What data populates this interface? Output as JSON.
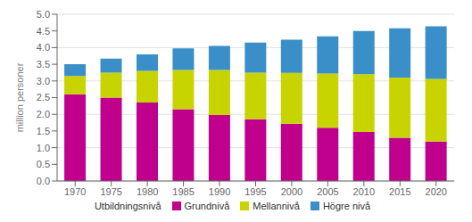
{
  "chart_data": {
    "type": "bar",
    "stacked": true,
    "categories": [
      "1970",
      "1975",
      "1980",
      "1985",
      "1990",
      "1995",
      "2000",
      "2005",
      "2010",
      "2015",
      "2020"
    ],
    "series": [
      {
        "name": "Grundnivå",
        "color": "#c0008c",
        "values": [
          2.6,
          2.5,
          2.35,
          2.15,
          1.98,
          1.85,
          1.72,
          1.6,
          1.47,
          1.3,
          1.18
        ]
      },
      {
        "name": "Mellannivå",
        "color": "#c8d400",
        "values": [
          0.55,
          0.75,
          0.95,
          1.18,
          1.35,
          1.4,
          1.52,
          1.62,
          1.73,
          1.8,
          1.88
        ]
      },
      {
        "name": "Högre nivå",
        "color": "#3a8fc8",
        "values": [
          0.35,
          0.42,
          0.5,
          0.65,
          0.72,
          0.9,
          1.0,
          1.12,
          1.3,
          1.48,
          1.58
        ]
      }
    ],
    "ylabel": "million personer",
    "ylim": [
      0.0,
      5.0
    ],
    "yticks": [
      {
        "value": 0,
        "label": "0.0"
      },
      {
        "value": 0.5,
        "label": "0.5"
      },
      {
        "value": 1,
        "label": "1.0"
      },
      {
        "value": 1.5,
        "label": "1.5"
      },
      {
        "value": 2,
        "label": "2.0"
      },
      {
        "value": 2.5,
        "label": "2.5"
      },
      {
        "value": 3,
        "label": "3.0"
      },
      {
        "value": 3.5,
        "label": "3.5"
      },
      {
        "value": 4,
        "label": "4.0"
      },
      {
        "value": 4.5,
        "label": "4.5"
      },
      {
        "value": 5,
        "label": "5.0"
      }
    ],
    "grid": true,
    "legend": "bottom",
    "legend_title": "Utbildningsnivå"
  }
}
